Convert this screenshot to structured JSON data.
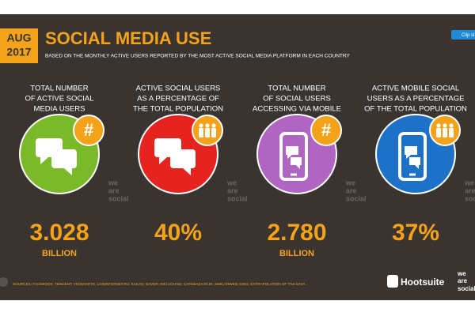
{
  "badge": {
    "month": "AUG",
    "year": "2017"
  },
  "header": {
    "title": "SOCIAL MEDIA USE",
    "subtitle": "BASED ON THE MONTHLY ACTIVE USERS REPORTED BY THE MOST ACTIVE SOCIAL MEDIA PLATFORM IN EACH COUNTRY"
  },
  "clip_button": "Clip sl",
  "badge_symbol": "#",
  "watermark": [
    "we",
    "are",
    "social"
  ],
  "stats": [
    {
      "label": [
        "TOTAL NUMBER",
        "OF ACTIVE SOCIAL",
        "MEDIA USERS"
      ],
      "value": "3.028",
      "unit": "BILLION",
      "color": "#7ab929",
      "icon": "chat",
      "badge": "hash"
    },
    {
      "label": [
        "ACTIVE SOCIAL USERS",
        "AS A PERCENTAGE OF",
        "THE TOTAL POPULATION"
      ],
      "value": "40%",
      "color": "#e5241f",
      "icon": "chat",
      "badge": "people"
    },
    {
      "label": [
        "TOTAL NUMBER",
        "OF SOCIAL USERS",
        "ACCESSING VIA MOBILE"
      ],
      "value": "2.780",
      "unit": "BILLION",
      "color": "#b065c2",
      "icon": "phone",
      "badge": "hash"
    },
    {
      "label": [
        "ACTIVE MOBILE SOCIAL",
        "USERS AS A PERCENTAGE",
        "OF THE TOTAL POPULATION"
      ],
      "value": "37%",
      "color": "#1d72c8",
      "icon": "phone",
      "badge": "people"
    }
  ],
  "footer": {
    "sources": "SOURCES: FACEBOOK; TENCENT; VKONTAKTE; LIVEINTERNET.RU; KAKAO; NAVER; NIKI AGHAEI; CAFEBAZAAR.IR; SIMILARWEB; DING; EXTRAPOLATION OF TNS DATA.",
    "logo": "Hootsuite",
    "partner": [
      "we",
      "are",
      "social"
    ]
  }
}
